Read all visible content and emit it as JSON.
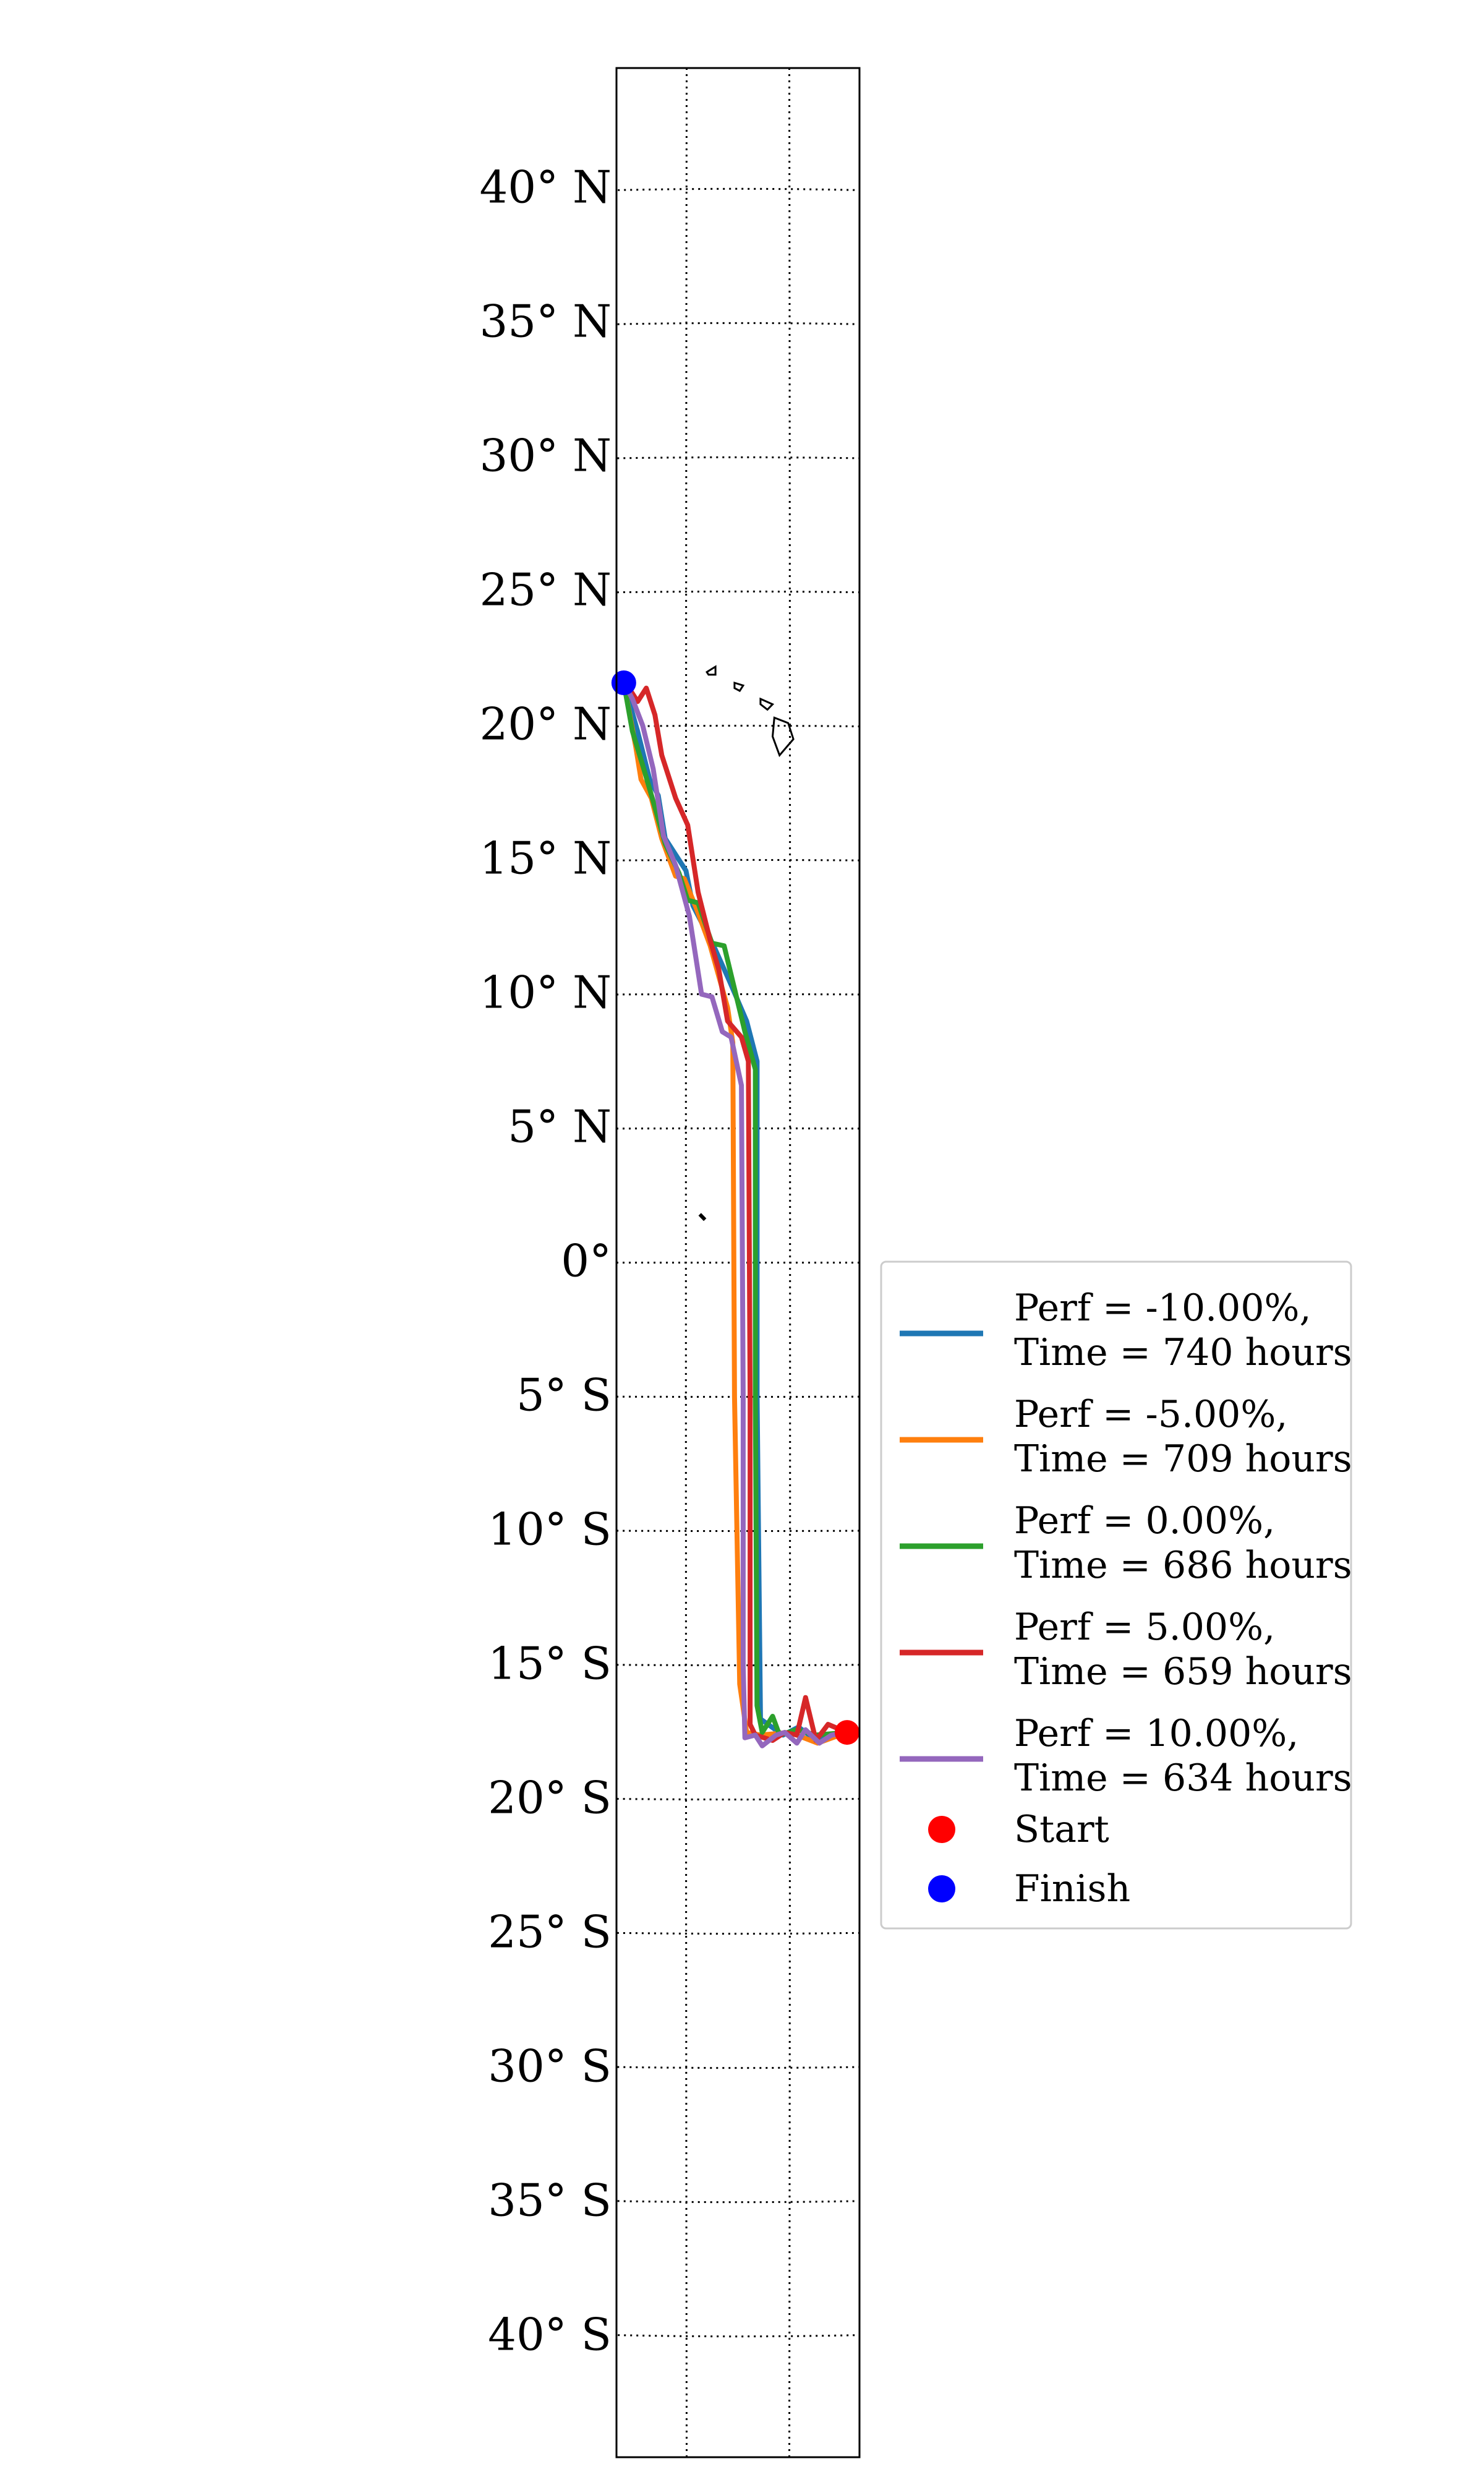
{
  "chart_data": {
    "type": "line",
    "title": "",
    "xlabel": "",
    "ylabel": "",
    "ylim": [
      -44.5,
      44.5
    ],
    "y_ticks": [
      {
        "value": 40,
        "label": "40° N"
      },
      {
        "value": 35,
        "label": "35° N"
      },
      {
        "value": 30,
        "label": "30° N"
      },
      {
        "value": 25,
        "label": "25° N"
      },
      {
        "value": 20,
        "label": "20° N"
      },
      {
        "value": 15,
        "label": "15° N"
      },
      {
        "value": 10,
        "label": "10° N"
      },
      {
        "value": 5,
        "label": "5° N"
      },
      {
        "value": 0,
        "label": "0°"
      },
      {
        "value": -5,
        "label": "5° S"
      },
      {
        "value": -10,
        "label": "10° S"
      },
      {
        "value": -15,
        "label": "15° S"
      },
      {
        "value": -20,
        "label": "20° S"
      },
      {
        "value": -25,
        "label": "25° S"
      },
      {
        "value": -30,
        "label": "30° S"
      },
      {
        "value": -35,
        "label": "35° S"
      },
      {
        "value": -40,
        "label": "40° S"
      }
    ],
    "grid": true,
    "legend_position": "right",
    "series": [
      {
        "name_lines": [
          "Perf = -10.00%,",
          "Time = 740 hours"
        ],
        "color": "#1f77b4",
        "points": [
          [
            -151.7,
            -17.5
          ],
          [
            -153.5,
            -17.8
          ],
          [
            -154.5,
            -17.3
          ],
          [
            -155.4,
            -17.6
          ],
          [
            -156.7,
            -17.0
          ],
          [
            -156.9,
            -5.0
          ],
          [
            -156.9,
            7.5
          ],
          [
            -157.5,
            9.0
          ],
          [
            -158.5,
            10.5
          ],
          [
            -159.4,
            11.8
          ],
          [
            -160.6,
            13.3
          ],
          [
            -161.0,
            14.6
          ],
          [
            -162.2,
            15.8
          ],
          [
            -162.6,
            17.4
          ],
          [
            -163.1,
            18.0
          ],
          [
            -163.8,
            19.8
          ],
          [
            -164.6,
            21.6
          ]
        ]
      },
      {
        "name_lines": [
          "Perf = -5.00%,",
          "Time = 709 hours"
        ],
        "color": "#ff7f0e",
        "points": [
          [
            -151.7,
            -17.5
          ],
          [
            -153.4,
            -17.9
          ],
          [
            -155.0,
            -17.5
          ],
          [
            -156.7,
            -17.6
          ],
          [
            -157.5,
            -17.5
          ],
          [
            -157.9,
            -15.7
          ],
          [
            -158.2,
            -5.0
          ],
          [
            -158.3,
            8.2
          ],
          [
            -158.6,
            9.5
          ],
          [
            -159.6,
            11.8
          ],
          [
            -160.4,
            13.2
          ],
          [
            -161.1,
            14.3
          ],
          [
            -161.6,
            14.4
          ],
          [
            -162.4,
            15.8
          ],
          [
            -163.0,
            17.3
          ],
          [
            -163.6,
            18.0
          ],
          [
            -163.9,
            19.2
          ],
          [
            -164.6,
            21.6
          ]
        ]
      },
      {
        "name_lines": [
          "Perf = 0.00%,",
          "Time = 686 hours"
        ],
        "color": "#2ca02c",
        "points": [
          [
            -151.7,
            -17.5
          ],
          [
            -153.5,
            -17.6
          ],
          [
            -154.6,
            -17.4
          ],
          [
            -155.6,
            -17.6
          ],
          [
            -156.0,
            -16.9
          ],
          [
            -156.6,
            -17.5
          ],
          [
            -156.9,
            -16.5
          ],
          [
            -157.0,
            -5.0
          ],
          [
            -157.0,
            7.2
          ],
          [
            -157.6,
            8.6
          ],
          [
            -158.2,
            10.2
          ],
          [
            -158.8,
            11.8
          ],
          [
            -159.5,
            11.9
          ],
          [
            -160.3,
            13.4
          ],
          [
            -160.9,
            13.5
          ],
          [
            -161.4,
            14.5
          ],
          [
            -162.2,
            15.6
          ],
          [
            -162.9,
            17.2
          ],
          [
            -163.4,
            18.3
          ],
          [
            -164.1,
            19.8
          ],
          [
            -164.6,
            21.6
          ]
        ]
      },
      {
        "name_lines": [
          "Perf = 5.00%,",
          "Time = 659 hours"
        ],
        "color": "#d62728",
        "points": [
          [
            -151.7,
            -17.5
          ],
          [
            -152.8,
            -17.2
          ],
          [
            -153.5,
            -17.8
          ],
          [
            -154.1,
            -16.2
          ],
          [
            -154.6,
            -17.6
          ],
          [
            -155.3,
            -17.5
          ],
          [
            -156.0,
            -17.8
          ],
          [
            -157.0,
            -17.6
          ],
          [
            -157.3,
            -17.2
          ],
          [
            -157.3,
            -5.0
          ],
          [
            -157.4,
            7.5
          ],
          [
            -157.8,
            8.4
          ],
          [
            -158.6,
            9.0
          ],
          [
            -159.1,
            10.9
          ],
          [
            -159.6,
            12.0
          ],
          [
            -160.3,
            13.8
          ],
          [
            -160.9,
            16.3
          ],
          [
            -161.6,
            17.3
          ],
          [
            -162.4,
            18.9
          ],
          [
            -162.8,
            20.4
          ],
          [
            -163.3,
            21.4
          ],
          [
            -163.8,
            20.9
          ],
          [
            -164.3,
            21.4
          ],
          [
            -164.6,
            21.6
          ]
        ]
      },
      {
        "name_lines": [
          "Perf = 10.00%,",
          "Time = 634 hours"
        ],
        "color": "#9467bd",
        "points": [
          [
            -151.7,
            -17.5
          ],
          [
            -152.6,
            -17.6
          ],
          [
            -153.3,
            -17.9
          ],
          [
            -154.1,
            -17.4
          ],
          [
            -154.6,
            -17.9
          ],
          [
            -155.3,
            -17.5
          ],
          [
            -155.8,
            -17.6
          ],
          [
            -156.6,
            -18.0
          ],
          [
            -157.0,
            -17.6
          ],
          [
            -157.6,
            -17.7
          ],
          [
            -157.7,
            -15.0
          ],
          [
            -157.7,
            -5.0
          ],
          [
            -157.8,
            6.6
          ],
          [
            -158.4,
            8.4
          ],
          [
            -158.9,
            8.6
          ],
          [
            -159.5,
            9.9
          ],
          [
            -160.1,
            10.0
          ],
          [
            -160.8,
            12.9
          ],
          [
            -161.6,
            14.8
          ],
          [
            -162.3,
            15.9
          ],
          [
            -162.9,
            18.4
          ],
          [
            -163.5,
            20.0
          ],
          [
            -164.1,
            21.0
          ],
          [
            -164.6,
            21.6
          ]
        ]
      }
    ],
    "markers": [
      {
        "name": "Start",
        "color": "#ff0000",
        "lon": -151.7,
        "lat": -17.5
      },
      {
        "name": "Finish",
        "color": "#0000ff",
        "lon": -164.6,
        "lat": 21.6
      }
    ],
    "coastlines": [
      {
        "name": "hawaii-kauai",
        "points": [
          [
            -159.8,
            22.0
          ],
          [
            -159.3,
            22.2
          ],
          [
            -159.3,
            21.9
          ],
          [
            -159.7,
            21.9
          ]
        ]
      },
      {
        "name": "hawaii-oahu",
        "points": [
          [
            -158.2,
            21.6
          ],
          [
            -157.7,
            21.5
          ],
          [
            -157.9,
            21.3
          ],
          [
            -158.2,
            21.4
          ]
        ]
      },
      {
        "name": "hawaii-maui",
        "points": [
          [
            -156.7,
            21.0
          ],
          [
            -156.0,
            20.8
          ],
          [
            -156.3,
            20.6
          ],
          [
            -156.7,
            20.8
          ]
        ]
      },
      {
        "name": "hawaii-big-island",
        "points": [
          [
            -155.9,
            20.3
          ],
          [
            -155.1,
            20.1
          ],
          [
            -154.8,
            19.5
          ],
          [
            -155.6,
            18.9
          ],
          [
            -156.0,
            19.6
          ]
        ]
      },
      {
        "name": "kiribati-islet",
        "points": [
          [
            -160.2,
            1.8
          ],
          [
            -159.9,
            1.6
          ]
        ]
      }
    ]
  }
}
